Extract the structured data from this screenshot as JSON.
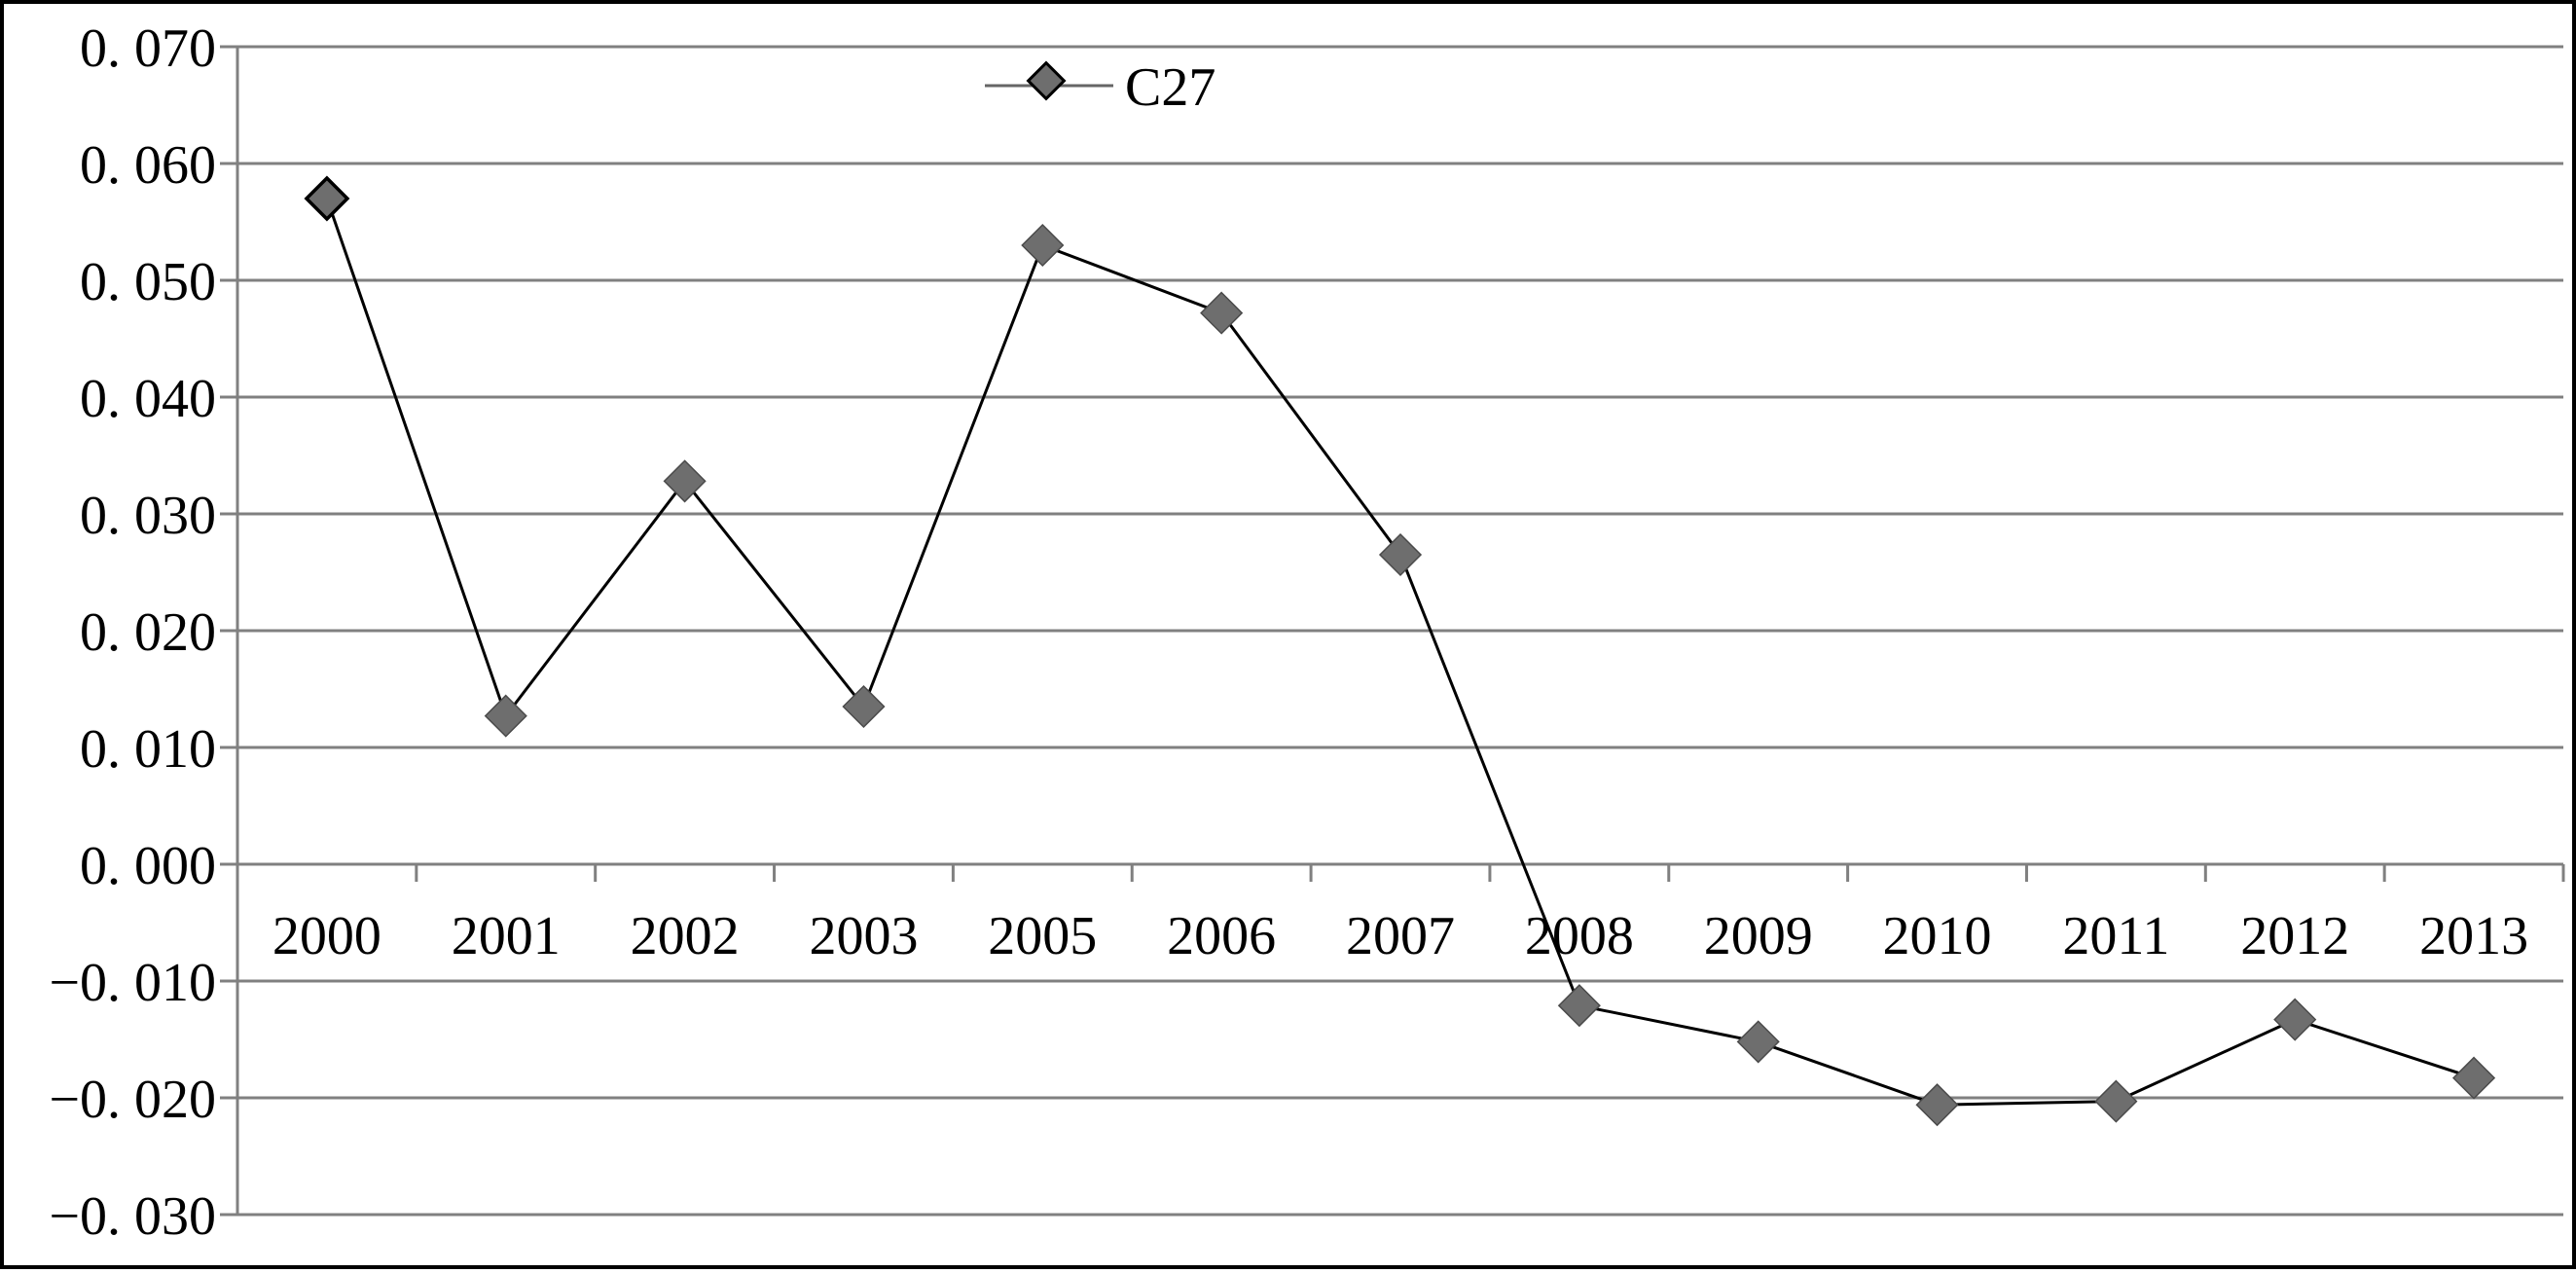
{
  "chart_data": {
    "type": "line",
    "title": "",
    "xlabel": "",
    "ylabel": "",
    "categories": [
      "2000",
      "2001",
      "2002",
      "2003",
      "2005",
      "2006",
      "2007",
      "2008",
      "2009",
      "2010",
      "2011",
      "2012",
      "2013"
    ],
    "series": [
      {
        "name": "C27",
        "values": [
          0.057,
          0.0127,
          0.0328,
          0.0135,
          0.053,
          0.0472,
          0.0265,
          -0.0121,
          -0.0152,
          -0.0206,
          -0.0203,
          -0.0133,
          -0.0183
        ],
        "line_color": "#000000",
        "marker": "diamond",
        "marker_color": "#6e6e6e"
      }
    ],
    "ylim": [
      -0.03,
      0.07
    ],
    "yticks": [
      0.07,
      0.06,
      0.05,
      0.04,
      0.03,
      0.02,
      0.01,
      0.0,
      -0.01,
      -0.02,
      -0.03
    ],
    "ytick_labels": [
      "0. 070",
      "0. 060",
      "0. 050",
      "0. 040",
      "0. 030",
      "0. 020",
      "0. 010",
      "0. 000",
      "−0. 010",
      "−0. 020",
      "−0. 030"
    ],
    "grid": true,
    "legend_position": "top-center"
  }
}
